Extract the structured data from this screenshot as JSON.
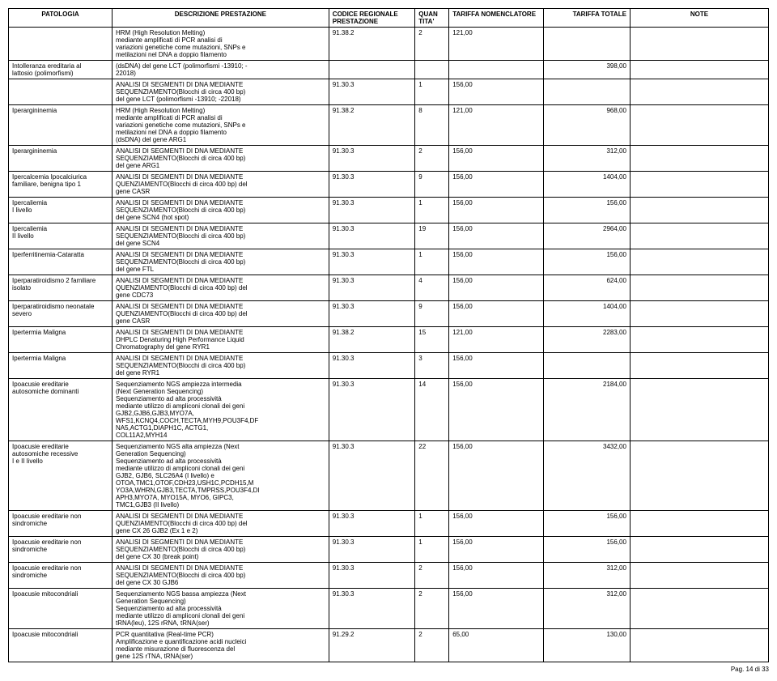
{
  "headers": {
    "patologia": "PATOLOGIA",
    "descrizione": "DESCRIZIONE PRESTAZIONE",
    "codice": "CODICE REGIONALE PRESTAZIONE",
    "quantita": "QUAN TITA'",
    "tariffa_nom": "TARIFFA NOMENCLATORE",
    "tariffa_tot": "TARIFFA TOTALE",
    "note": "NOTE"
  },
  "r1a": {
    "pat": "",
    "desc": "HRM (High Resolution Melting)\nmediante amplificati di PCR analisi di\nvariazioni genetiche come mutazioni, SNPs e\nmetilazioni nel DNA a doppio filamento",
    "cod": "91.38.2",
    "qty": "2",
    "tar1": "121,00",
    "tar2": "",
    "note": ""
  },
  "r1b": {
    "pat": "Intolleranza ereditaria al\nlattosio (polimorfismi)",
    "desc": "(dsDNA) del gene LCT (polimorfismi -13910; -\n22018)",
    "cod": "",
    "qty": "",
    "tar1": "",
    "tar2": "398,00",
    "note": ""
  },
  "r1c": {
    "pat": "",
    "desc": "ANALISI DI SEGMENTI DI DNA MEDIANTE\nSEQUENZIAMENTO(Blocchi di circa 400 bp)\ndel gene LCT (polimorfismi -13910; -22018)",
    "cod": "91.30.3",
    "qty": "1",
    "tar1": "156,00",
    "tar2": "",
    "note": ""
  },
  "r2a": {
    "pat": "Iperargininemia",
    "desc": "HRM (High Resolution Melting)\nmediante amplificati di PCR analisi di\nvariazioni genetiche come mutazioni, SNPs e\nmetilazioni nel DNA a doppio filamento\n(dsDNA) del gene ARG1",
    "cod": "91.38.2",
    "qty": "8",
    "tar1": "121,00",
    "tar2": "968,00",
    "note": ""
  },
  "r2b": {
    "pat": "Iperargininemia",
    "desc": "ANALISI DI SEGMENTI DI DNA MEDIANTE\nSEQUENZIAMENTO(Blocchi di circa 400 bp)\ndel gene ARG1",
    "cod": "91.30.3",
    "qty": "2",
    "tar1": "156,00",
    "tar2": "312,00",
    "note": ""
  },
  "r3": {
    "pat": "Ipercalcemia Ipocalciurica\nfamiliare, benigna tipo 1",
    "desc": "ANALISI DI SEGMENTI DI DNA MEDIANTE\nQUENZIAMENTO(Blocchi di circa 400 bp) del\ngene CASR",
    "cod": "91.30.3",
    "qty": "9",
    "tar1": "156,00",
    "tar2": "1404,00",
    "note": ""
  },
  "r4": {
    "pat": "Ipercaliemia\nI livello",
    "desc": "ANALISI DI SEGMENTI DI DNA MEDIANTE\nSEQUENZIAMENTO(Blocchi di circa 400 bp)\ndel gene SCN4 (hot spot)",
    "cod": "91.30.3",
    "qty": "1",
    "tar1": "156,00",
    "tar2": "156,00",
    "note": ""
  },
  "r5": {
    "pat": "Ipercaliemia\nII livello",
    "desc": "ANALISI DI SEGMENTI DI DNA MEDIANTE\nSEQUENZIAMENTO(Blocchi di circa 400 bp)\ndel gene SCN4",
    "cod": "91.30.3",
    "qty": "19",
    "tar1": "156,00",
    "tar2": "2964,00",
    "note": ""
  },
  "r6": {
    "pat": "Iperferritinemia-Cataratta",
    "desc": "ANALISI DI SEGMENTI DI DNA MEDIANTE\nSEQUENZIAMENTO(Blocchi di circa 400 bp)\ndel gene FTL",
    "cod": "91.30.3",
    "qty": "1",
    "tar1": "156,00",
    "tar2": "156,00",
    "note": ""
  },
  "r7": {
    "pat": "Iperparatiroidismo 2 familiare\nisolato",
    "desc": "ANALISI DI SEGMENTI DI DNA MEDIANTE\nQUENZIAMENTO(Blocchi di circa 400 bp) del\ngene CDC73",
    "cod": "91.30.3",
    "qty": "4",
    "tar1": "156,00",
    "tar2": "624,00",
    "note": ""
  },
  "r8": {
    "pat": "Iperparatiroidismo neonatale\nsevero",
    "desc": "ANALISI DI SEGMENTI DI DNA MEDIANTE\nQUENZIAMENTO(Blocchi di circa 400 bp) del\ngene CASR",
    "cod": "91.30.3",
    "qty": "9",
    "tar1": "156,00",
    "tar2": "1404,00",
    "note": ""
  },
  "r9a": {
    "pat": "Ipertermia Maligna",
    "desc": "ANALISI DI SEGMENTI DI DNA MEDIANTE\nDHPLC Denaturing High Performance Liquid\nChromatography del gene RYR1",
    "cod": "91.38.2",
    "qty": "15",
    "tar1": "121,00",
    "tar2": "2283,00",
    "note": ""
  },
  "r9b": {
    "pat": "Ipertermia Maligna",
    "desc": "ANALISI DI SEGMENTI DI DNA MEDIANTE\nSEQUENZIAMENTO(Blocchi di circa 400 bp)\ndel gene RYR1",
    "cod": "91.30.3",
    "qty": "3",
    "tar1": "156,00",
    "tar2": "",
    "note": ""
  },
  "r10": {
    "pat": "Ipoacusie ereditarie\nautosomiche dominanti",
    "desc": "Sequenziamento NGS ampiezza intermedia\n(Next Generation Sequencing)\nSequenziamento ad alta processività\nmediante utilizzo di ampliconi clonali dei geni\nGJB2,GJB6,GJB3,MYO7A,\nWFS1,KCNQ4,COCH,TECTA,MYH9,POU3F4,DF\nNA5,ACTG1,DIAPH1C, ACTG1,\nCOL11A2,MYH14",
    "cod": "91.30.3",
    "qty": "14",
    "tar1": "156,00",
    "tar2": "2184,00",
    "note": ""
  },
  "r11": {
    "pat": "Ipoacusie ereditarie\nautosomiche recessive\nI e II livello",
    "desc": "Sequenziamento NGS alta ampiezza (Next\nGeneration Sequencing)\nSequenziamento ad alta processività\nmediante utilizzo di ampliconi clonali dei geni\nGJB2, GJB6, SLC26A4 (I livello) e\nOTOA,TMC1,OTOF,CDH23,USH1C,PCDH15,M\nYO3A,WHRN,GJB3,TECTA,TMPRSS,POU3F4,DI\nAPH3,MYO7A, MYO15A, MYO6, GIPC3,\nTMC1,GJB3 (II livello)",
    "cod": "91.30.3",
    "qty": "22",
    "tar1": "156,00",
    "tar2": "3432,00",
    "note": ""
  },
  "r12": {
    "pat": "Ipoacusie ereditarie non\nsindromiche",
    "desc": "ANALISI DI SEGMENTI DI DNA MEDIANTE\nQUENZIAMENTO(Blocchi di circa 400 bp) del\ngene CX 26 GJB2 (Ex 1 e 2)",
    "cod": "91.30.3",
    "qty": "1",
    "tar1": "156,00",
    "tar2": "156,00",
    "note": ""
  },
  "r13": {
    "pat": "Ipoacusie ereditarie non\nsindromiche",
    "desc": "ANALISI DI SEGMENTI DI DNA MEDIANTE\nSEQUENZIAMENTO(Blocchi di circa 400 bp)\ndel gene CX 30 (break point)",
    "cod": "91.30.3",
    "qty": "1",
    "tar1": "156,00",
    "tar2": "156,00",
    "note": ""
  },
  "r14": {
    "pat": "Ipoacusie ereditarie non\nsindromiche",
    "desc": "ANALISI DI SEGMENTI DI DNA MEDIANTE\nSEQUENZIAMENTO(Blocchi di circa 400 bp)\ndel gene CX 30 GJB6",
    "cod": "91.30.3",
    "qty": "2",
    "tar1": "156,00",
    "tar2": "312,00",
    "note": ""
  },
  "r15": {
    "pat": "Ipoacusie mitocondriali",
    "desc": "Sequenziamento NGS bassa ampiezza (Next\nGeneration Sequencing)\nSequenziamento ad alta processività\nmediante utilizzo di ampliconi clonali dei geni\ntRNA(leu), 12S rRNA, tRNA(ser)",
    "cod": "91.30.3",
    "qty": "2",
    "tar1": "156,00",
    "tar2": "312,00",
    "note": ""
  },
  "r16": {
    "pat": "Ipoacusie mitocondriali",
    "desc": "PCR quantitativa (Real-time PCR)\nAmplificazione e quantificazione acidi nucleici\nmediante misurazione di fluorescenza del\ngene 12S rTNA, tRNA(ser)",
    "cod": "91.29.2",
    "qty": "2",
    "tar1": "65,00",
    "tar2": "130,00",
    "note": ""
  },
  "footer": "Pag. 14 di 33"
}
